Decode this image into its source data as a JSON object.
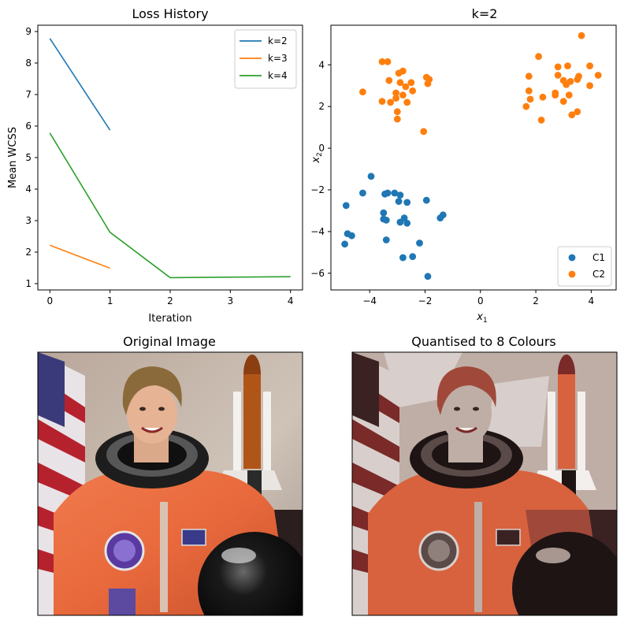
{
  "figure": {
    "panels": [
      "Loss History",
      "k=2",
      "Original Image",
      "Quantised to 8 Colours"
    ]
  },
  "chart_data": [
    {
      "type": "line",
      "title": "Loss History",
      "xlabel": "Iteration",
      "ylabel": "Mean WCSS",
      "xlim": [
        -0.2,
        4.2
      ],
      "ylim": [
        0.8,
        9.2
      ],
      "xticks": [
        0,
        1,
        2,
        3,
        4
      ],
      "yticks": [
        1,
        2,
        3,
        4,
        5,
        6,
        7,
        8,
        9
      ],
      "legend_position": "top-right",
      "series": [
        {
          "name": "k=2",
          "color": "#1f77b4",
          "x": [
            0,
            1
          ],
          "y": [
            8.78,
            5.87
          ]
        },
        {
          "name": "k=3",
          "color": "#ff7f0e",
          "x": [
            0,
            1
          ],
          "y": [
            2.22,
            1.49
          ]
        },
        {
          "name": "k=4",
          "color": "#2ca02c",
          "x": [
            0,
            1,
            2,
            4
          ],
          "y": [
            5.78,
            2.63,
            1.19,
            1.22
          ]
        }
      ]
    },
    {
      "type": "scatter",
      "title": "k=2",
      "xlabel": "x",
      "xlabel_sub": "1",
      "ylabel": "x",
      "ylabel_sub": "2",
      "xlim": [
        -5.4,
        4.9
      ],
      "ylim": [
        -6.8,
        5.9
      ],
      "xticks": [
        -4,
        -2,
        0,
        2,
        4
      ],
      "yticks": [
        -6,
        -4,
        -2,
        0,
        2,
        4
      ],
      "legend_position": "bottom-right",
      "series": [
        {
          "name": "C1",
          "color": "#1f77b4",
          "points": [
            [
              -3.95,
              -1.35
            ],
            [
              -4.25,
              -2.15
            ],
            [
              -3.35,
              -2.15
            ],
            [
              -3.45,
              -2.2
            ],
            [
              -3.1,
              -2.15
            ],
            [
              -2.9,
              -2.25
            ],
            [
              -1.95,
              -2.5
            ],
            [
              -2.95,
              -2.55
            ],
            [
              -2.65,
              -2.6
            ],
            [
              -4.85,
              -2.75
            ],
            [
              -3.5,
              -3.1
            ],
            [
              -1.35,
              -3.2
            ],
            [
              -1.45,
              -3.35
            ],
            [
              -3.5,
              -3.4
            ],
            [
              -3.4,
              -3.45
            ],
            [
              -2.75,
              -3.35
            ],
            [
              -2.9,
              -3.55
            ],
            [
              -2.65,
              -3.6
            ],
            [
              -4.8,
              -4.1
            ],
            [
              -4.65,
              -4.2
            ],
            [
              -3.4,
              -4.4
            ],
            [
              -2.2,
              -4.55
            ],
            [
              -4.9,
              -4.6
            ],
            [
              -2.45,
              -5.2
            ],
            [
              -2.8,
              -5.25
            ],
            [
              -1.9,
              -6.15
            ]
          ]
        },
        {
          "name": "C2",
          "color": "#ff7f0e",
          "points": [
            [
              -3.55,
              4.15
            ],
            [
              -3.35,
              4.15
            ],
            [
              -2.8,
              3.7
            ],
            [
              -2.95,
              3.6
            ],
            [
              -3.3,
              3.25
            ],
            [
              -2.9,
              3.15
            ],
            [
              -2.5,
              3.15
            ],
            [
              -1.95,
              3.4
            ],
            [
              -1.9,
              3.1
            ],
            [
              -2.7,
              2.95
            ],
            [
              -2.45,
              2.75
            ],
            [
              -3.05,
              2.65
            ],
            [
              -2.8,
              2.55
            ],
            [
              -4.25,
              2.7
            ],
            [
              -3.55,
              2.25
            ],
            [
              -3.25,
              2.2
            ],
            [
              -3.05,
              2.4
            ],
            [
              -2.65,
              2.2
            ],
            [
              -3.0,
              1.75
            ],
            [
              -3.0,
              1.4
            ],
            [
              -2.05,
              0.8
            ],
            [
              -1.85,
              3.3
            ],
            [
              2.1,
              4.4
            ],
            [
              3.65,
              5.4
            ],
            [
              2.8,
              3.9
            ],
            [
              3.15,
              3.95
            ],
            [
              3.95,
              3.95
            ],
            [
              4.25,
              3.5
            ],
            [
              1.75,
              3.45
            ],
            [
              2.8,
              3.5
            ],
            [
              3.0,
              3.25
            ],
            [
              3.25,
              3.2
            ],
            [
              3.5,
              3.3
            ],
            [
              3.55,
              3.45
            ],
            [
              3.1,
              3.05
            ],
            [
              3.95,
              3.0
            ],
            [
              1.75,
              2.75
            ],
            [
              2.7,
              2.65
            ],
            [
              2.7,
              2.55
            ],
            [
              3.2,
              2.55
            ],
            [
              2.25,
              2.45
            ],
            [
              1.8,
              2.35
            ],
            [
              3.0,
              2.25
            ],
            [
              1.65,
              2.0
            ],
            [
              3.5,
              1.75
            ],
            [
              3.3,
              1.6
            ],
            [
              2.2,
              1.35
            ]
          ]
        }
      ]
    }
  ],
  "images": [
    {
      "title": "Original Image",
      "subject": "astronaut portrait"
    },
    {
      "title": "Quantised to 8 Colours",
      "subject": "astronaut portrait (8-colour)"
    }
  ]
}
